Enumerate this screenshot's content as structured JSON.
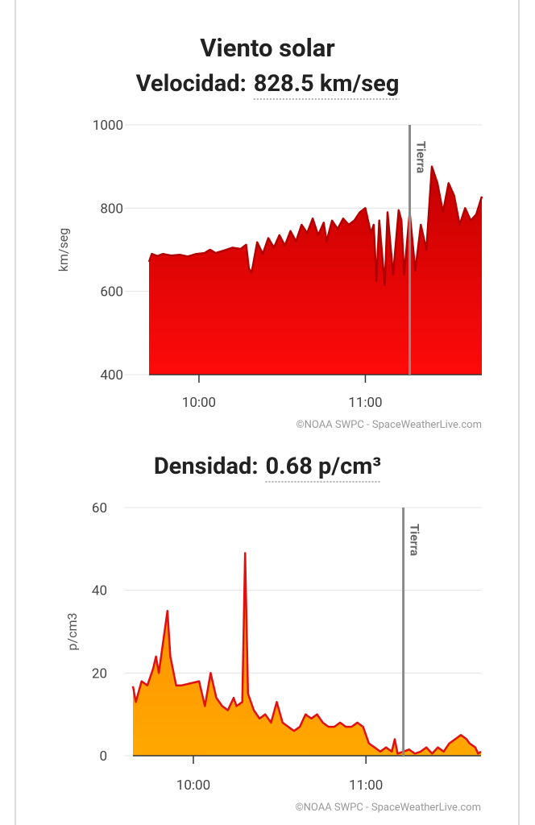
{
  "chart_data": [
    {
      "type": "area",
      "title": "Viento solar",
      "subtitle_label": "Velocidad:",
      "subtitle_value": "828.5 km/seg",
      "ylabel": "km/seg",
      "credit": "©NOAA SWPC - SpaceWeatherLive.com",
      "xlim": [
        "09:42",
        "11:42"
      ],
      "xticks": [
        "10:00",
        "11:00"
      ],
      "ylim": [
        400,
        1000
      ],
      "yticks": [
        400,
        600,
        800,
        1000
      ],
      "grid": true,
      "line_color": "#b30000",
      "fill_top": "#c40000",
      "fill_bottom": "#ff0a0a",
      "annotation": {
        "x": "11:16",
        "label": "Tierra"
      },
      "x": [
        "09:42",
        "09:43",
        "09:45",
        "09:47",
        "09:50",
        "09:53",
        "09:56",
        "09:59",
        "10:02",
        "10:04",
        "10:06",
        "10:09",
        "10:12",
        "10:15",
        "10:17",
        "10:18",
        "10:19",
        "10:21",
        "10:23",
        "10:25",
        "10:27",
        "10:29",
        "10:31",
        "10:33",
        "10:35",
        "10:37",
        "10:39",
        "10:41",
        "10:43",
        "10:45",
        "10:46",
        "10:48",
        "10:50",
        "10:52",
        "10:54",
        "10:56",
        "10:58",
        "11:00",
        "11:02",
        "11:03",
        "11:04",
        "11:05",
        "11:07",
        "11:08",
        "11:10",
        "11:12",
        "11:13",
        "11:14",
        "11:16",
        "11:18",
        "11:20",
        "11:22",
        "11:24",
        "11:26",
        "11:28",
        "11:30",
        "11:32",
        "11:34",
        "11:36",
        "11:38",
        "11:40",
        "11:42"
      ],
      "values": [
        671,
        690,
        685,
        690,
        686,
        688,
        684,
        690,
        692,
        700,
        692,
        698,
        705,
        702,
        712,
        655,
        645,
        718,
        690,
        728,
        705,
        735,
        710,
        745,
        720,
        760,
        740,
        775,
        735,
        765,
        720,
        770,
        750,
        775,
        760,
        770,
        790,
        800,
        740,
        760,
        625,
        770,
        615,
        790,
        640,
        795,
        770,
        640,
        790,
        650,
        760,
        700,
        900,
        860,
        790,
        860,
        830,
        760,
        800,
        770,
        785,
        828
      ]
    },
    {
      "type": "area",
      "subtitle_label": "Densidad:",
      "subtitle_value": "0.68 p/cm³",
      "ylabel": "p/cm3",
      "credit": "©NOAA SWPC - SpaceWeatherLive.com",
      "xlim": [
        "09:39",
        "11:40"
      ],
      "xticks": [
        "10:00",
        "11:00"
      ],
      "ylim": [
        0,
        60
      ],
      "yticks": [
        0,
        20,
        40,
        60
      ],
      "grid": true,
      "line_color": "#e01010",
      "fill_top": "#ff8a00",
      "fill_bottom": "#ffa800",
      "annotation": {
        "x": "11:13",
        "label": "Tierra"
      },
      "x": [
        "09:39",
        "09:40",
        "09:42",
        "09:44",
        "09:46",
        "09:47",
        "09:48",
        "09:51",
        "09:52",
        "09:54",
        "09:56",
        "10:02",
        "10:04",
        "10:06",
        "10:08",
        "10:10",
        "10:12",
        "10:14",
        "10:15",
        "10:17",
        "10:18",
        "10:19",
        "10:21",
        "10:23",
        "10:25",
        "10:27",
        "10:29",
        "10:31",
        "10:33",
        "10:35",
        "10:37",
        "10:39",
        "10:41",
        "10:43",
        "10:45",
        "10:47",
        "10:49",
        "10:51",
        "10:53",
        "10:55",
        "10:57",
        "10:59",
        "11:01",
        "11:03",
        "11:05",
        "11:07",
        "11:09",
        "11:10",
        "11:11",
        "11:13",
        "11:15",
        "11:17",
        "11:19",
        "11:21",
        "11:23",
        "11:25",
        "11:27",
        "11:29",
        "11:31",
        "11:33",
        "11:35",
        "11:36",
        "11:38",
        "11:39",
        "11:40"
      ],
      "values": [
        16.8,
        13,
        18,
        17,
        21,
        24,
        20,
        35,
        24,
        17,
        17,
        18,
        12,
        20,
        14,
        12,
        11,
        14,
        12,
        13,
        49,
        15,
        11,
        9,
        10,
        8,
        13,
        8,
        7,
        6,
        7,
        10,
        9,
        10,
        8,
        7,
        7,
        8,
        7,
        7,
        8,
        7,
        3,
        2,
        1,
        2,
        1,
        4,
        0.5,
        1,
        1.5,
        0.5,
        1,
        2,
        0.5,
        2,
        1,
        3,
        4,
        5,
        4,
        3,
        2,
        0.5,
        1
      ]
    }
  ]
}
